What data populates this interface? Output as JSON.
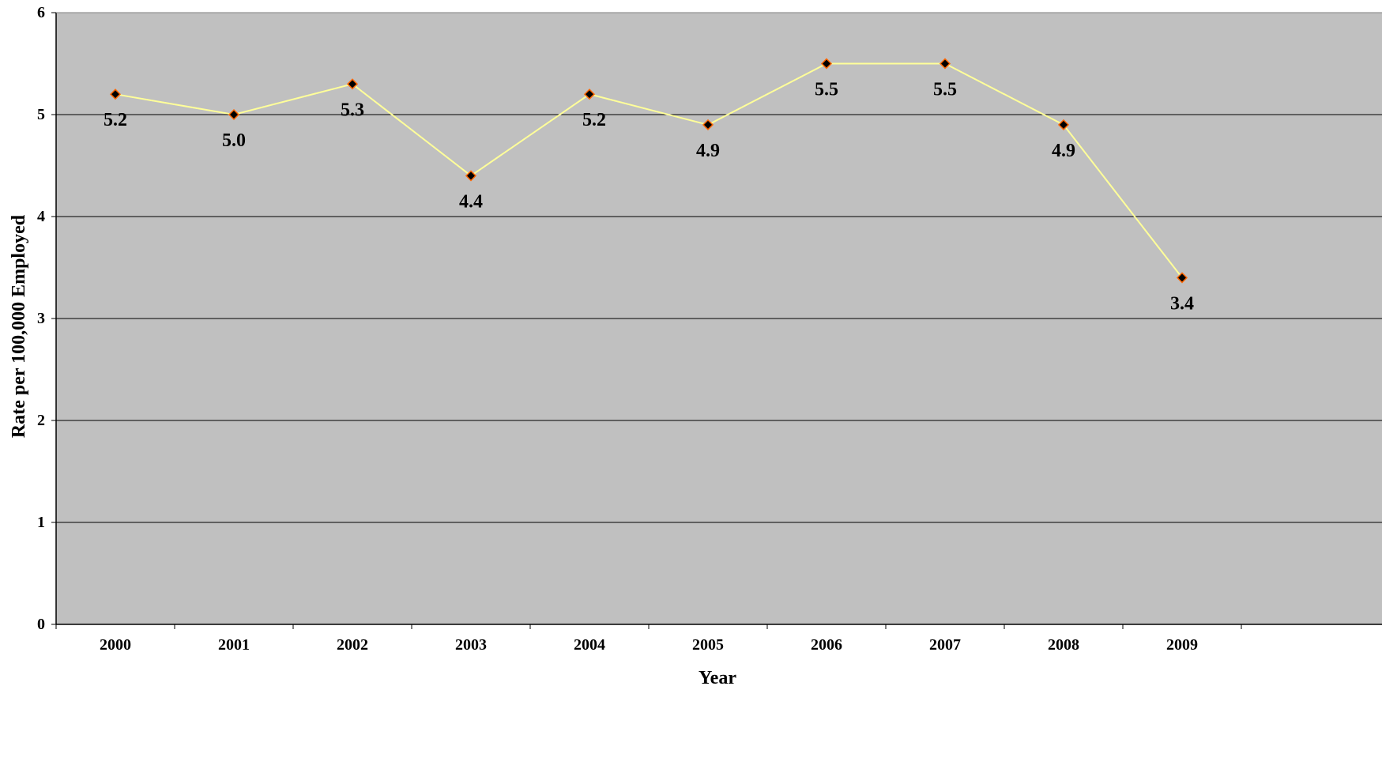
{
  "chart_data": {
    "type": "line",
    "title": "",
    "xlabel": "Year",
    "ylabel": "Rate per 100,000 Employed",
    "categories": [
      "2000",
      "2001",
      "2002",
      "2003",
      "2004",
      "2005",
      "2006",
      "2007",
      "2008",
      "2009"
    ],
    "series": [
      {
        "values": [
          5.2,
          5.0,
          5.3,
          4.4,
          5.2,
          4.9,
          5.5,
          5.5,
          4.9,
          3.4
        ],
        "data_labels": [
          "5.2",
          "5.0",
          "5.3",
          "4.4",
          "5.2",
          "4.9",
          "5.5",
          "5.5",
          "4.9",
          "3.4"
        ]
      }
    ],
    "ylim": [
      0,
      6
    ],
    "yticks": [
      "0",
      "1",
      "2",
      "3",
      "4",
      "5",
      "6"
    ],
    "grid": true,
    "legend": "none",
    "colors": {
      "plot_background": "#c0c0c0",
      "line": "#ffff99",
      "marker_fill": "#000000",
      "marker_edge": "#ff6600",
      "gridline": "#000000"
    }
  }
}
